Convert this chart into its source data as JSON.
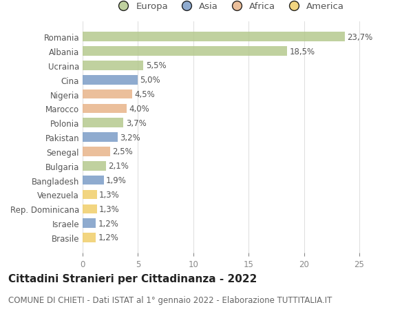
{
  "countries": [
    "Romania",
    "Albania",
    "Ucraina",
    "Cina",
    "Nigeria",
    "Marocco",
    "Polonia",
    "Pakistan",
    "Senegal",
    "Bulgaria",
    "Bangladesh",
    "Venezuela",
    "Rep. Dominicana",
    "Israele",
    "Brasile"
  ],
  "values": [
    23.7,
    18.5,
    5.5,
    5.0,
    4.5,
    4.0,
    3.7,
    3.2,
    2.5,
    2.1,
    1.9,
    1.3,
    1.3,
    1.2,
    1.2
  ],
  "labels": [
    "23,7%",
    "18,5%",
    "5,5%",
    "5,0%",
    "4,5%",
    "4,0%",
    "3,7%",
    "3,2%",
    "2,5%",
    "2,1%",
    "1,9%",
    "1,3%",
    "1,3%",
    "1,2%",
    "1,2%"
  ],
  "continents": [
    "Europa",
    "Europa",
    "Europa",
    "Asia",
    "Africa",
    "Africa",
    "Europa",
    "Asia",
    "Africa",
    "Europa",
    "Asia",
    "America",
    "America",
    "Asia",
    "America"
  ],
  "continent_colors": {
    "Europa": "#b5c98e",
    "Asia": "#7b9dc7",
    "Africa": "#e8b48a",
    "America": "#f0ce6a"
  },
  "legend_order": [
    "Europa",
    "Asia",
    "Africa",
    "America"
  ],
  "title": "Cittadini Stranieri per Cittadinanza - 2022",
  "subtitle": "COMUNE DI CHIETI - Dati ISTAT al 1° gennaio 2022 - Elaborazione TUTTITALIA.IT",
  "xlim": [
    0,
    26.5
  ],
  "xticks": [
    0,
    5,
    10,
    15,
    20,
    25
  ],
  "background_color": "#ffffff",
  "grid_color": "#e0e0e0",
  "bar_height": 0.65,
  "title_fontsize": 11,
  "subtitle_fontsize": 8.5,
  "label_fontsize": 8.5,
  "tick_fontsize": 8.5,
  "legend_fontsize": 9.5
}
